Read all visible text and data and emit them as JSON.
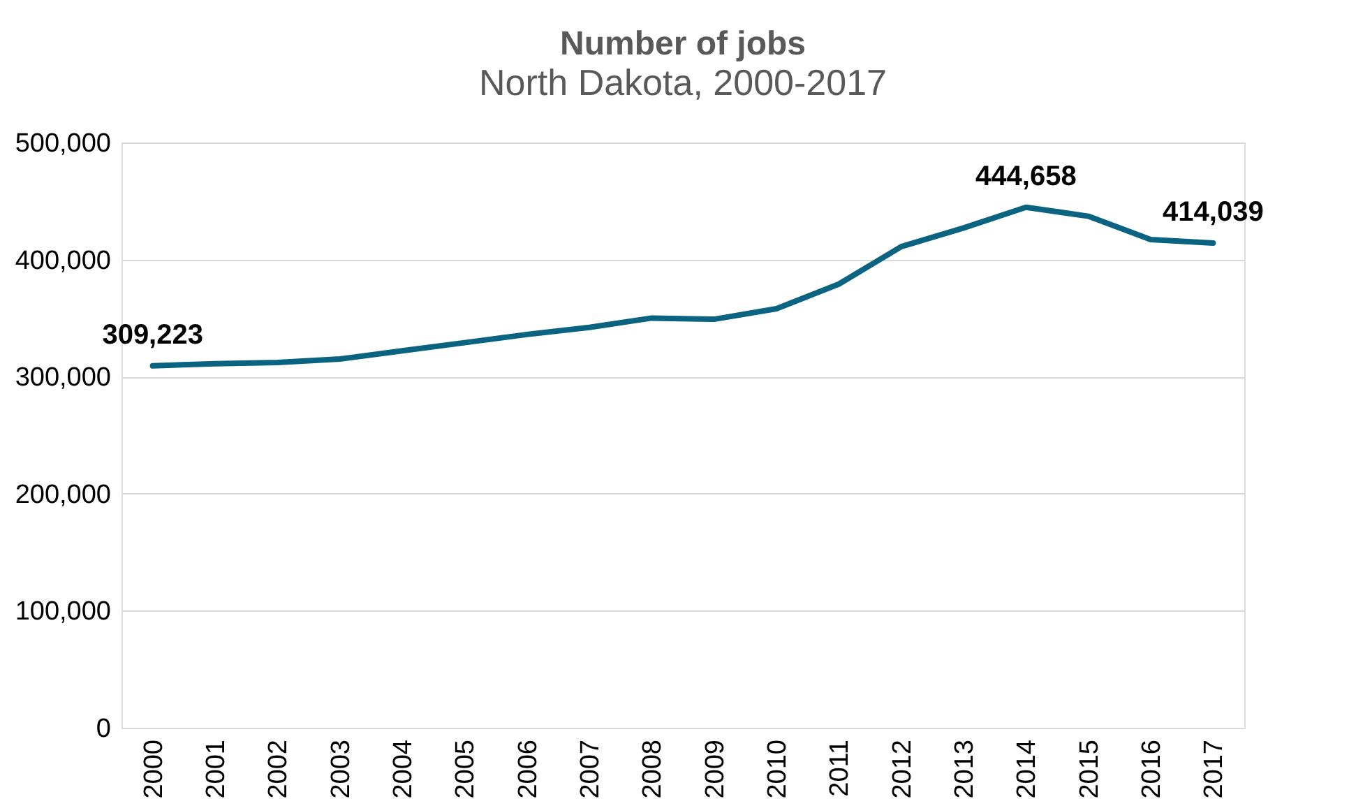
{
  "chart_data": {
    "type": "line",
    "title": "Number of jobs",
    "subtitle": "North Dakota, 2000-2017",
    "categories": [
      "2000",
      "2001",
      "2002",
      "2003",
      "2004",
      "2005",
      "2006",
      "2007",
      "2008",
      "2009",
      "2010",
      "2011",
      "2012",
      "2013",
      "2014",
      "2015",
      "2016",
      "2017"
    ],
    "series": [
      {
        "color": "#0b6382",
        "values": [
          309223,
          311000,
          312000,
          315000,
          322000,
          329000,
          336000,
          342000,
          350000,
          349000,
          358000,
          379000,
          411000,
          427000,
          444658,
          437000,
          417000,
          414039
        ],
        "value_labels": [
          "309,223",
          null,
          null,
          null,
          null,
          null,
          null,
          null,
          null,
          null,
          null,
          null,
          null,
          null,
          "444,658",
          null,
          null,
          "414,039"
        ]
      }
    ],
    "ylim": [
      0,
      500000
    ],
    "yticks": [
      0,
      {
        "value": 100000,
        "label": "100,000"
      },
      {
        "value": 200000,
        "label": "200,000"
      },
      {
        "value": 300000,
        "label": "300,000"
      },
      {
        "value": 400000,
        "label": "400,000"
      },
      {
        "value": 500000,
        "label": "500,000"
      }
    ],
    "grid": "y",
    "marker": "none",
    "line_style": "solid"
  }
}
